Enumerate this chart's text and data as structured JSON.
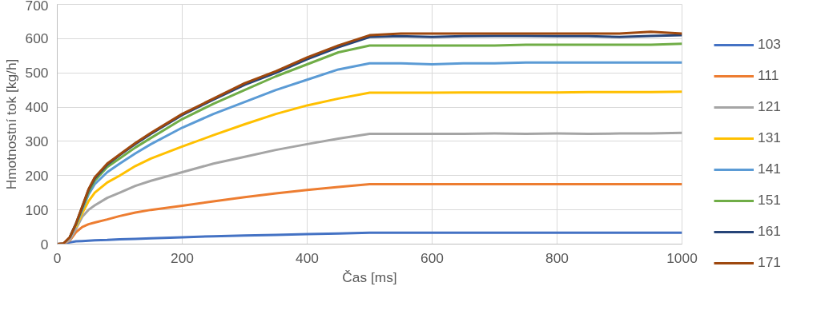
{
  "chart_data": {
    "type": "line",
    "xlabel": "Čas [ms]",
    "ylabel": "Hmotnostní tok [kg/h]",
    "x": [
      0,
      10,
      20,
      30,
      40,
      50,
      60,
      80,
      100,
      125,
      150,
      200,
      250,
      300,
      350,
      400,
      450,
      500,
      550,
      600,
      650,
      700,
      750,
      800,
      850,
      900,
      950,
      1000
    ],
    "xlim": [
      0,
      1000
    ],
    "xticks": [
      0,
      200,
      400,
      600,
      800,
      1000
    ],
    "ylim": [
      0,
      700
    ],
    "yticks": [
      0,
      100,
      200,
      300,
      400,
      500,
      600,
      700
    ],
    "grid": true,
    "legend": "right",
    "line_style": "solid",
    "marker": "none",
    "series": [
      {
        "name": "103",
        "color": "#4472c4",
        "values": [
          0,
          2,
          5,
          8,
          9,
          10,
          11,
          12,
          14,
          15,
          17,
          20,
          23,
          25,
          27,
          29,
          31,
          33,
          33,
          33,
          33,
          33,
          33,
          33,
          33,
          33,
          33,
          33
        ]
      },
      {
        "name": "111",
        "color": "#ed7d31",
        "values": [
          0,
          2,
          10,
          35,
          50,
          58,
          63,
          72,
          82,
          92,
          100,
          112,
          125,
          137,
          148,
          158,
          167,
          175,
          175,
          175,
          175,
          175,
          175,
          175,
          175,
          175,
          175,
          175
        ]
      },
      {
        "name": "121",
        "color": "#a5a5a5",
        "values": [
          0,
          2,
          12,
          45,
          80,
          100,
          113,
          135,
          150,
          170,
          185,
          210,
          235,
          255,
          275,
          292,
          308,
          322,
          322,
          322,
          322,
          323,
          322,
          323,
          322,
          323,
          323,
          325
        ]
      },
      {
        "name": "131",
        "color": "#ffc000",
        "values": [
          null,
          null,
          null,
          50,
          90,
          125,
          150,
          180,
          200,
          228,
          250,
          285,
          318,
          350,
          380,
          405,
          425,
          442,
          442,
          442,
          443,
          443,
          443,
          443,
          444,
          444,
          444,
          445
        ]
      },
      {
        "name": "141",
        "color": "#5b9bd5",
        "values": [
          null,
          null,
          null,
          55,
          100,
          145,
          175,
          210,
          235,
          265,
          292,
          340,
          380,
          415,
          450,
          480,
          510,
          528,
          528,
          525,
          528,
          528,
          530,
          530,
          530,
          530,
          530,
          530
        ]
      },
      {
        "name": "151",
        "color": "#70ad47",
        "values": [
          null,
          null,
          20,
          58,
          105,
          152,
          185,
          225,
          250,
          282,
          310,
          365,
          410,
          450,
          490,
          525,
          560,
          580,
          580,
          580,
          580,
          580,
          582,
          582,
          582,
          582,
          582,
          585
        ]
      },
      {
        "name": "161",
        "color": "#264478",
        "values": [
          null,
          null,
          20,
          60,
          108,
          158,
          192,
          232,
          260,
          292,
          322,
          377,
          422,
          465,
          500,
          540,
          575,
          605,
          607,
          605,
          607,
          608,
          608,
          607,
          607,
          605,
          608,
          610
        ]
      },
      {
        "name": "171",
        "color": "#9e480e",
        "values": [
          0,
          2,
          20,
          60,
          110,
          160,
          195,
          235,
          262,
          295,
          325,
          380,
          425,
          470,
          505,
          545,
          580,
          610,
          615,
          615,
          615,
          615,
          615,
          615,
          615,
          615,
          620,
          615
        ]
      }
    ]
  }
}
